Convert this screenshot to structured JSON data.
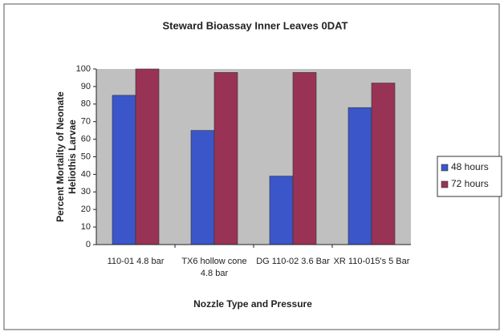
{
  "chart_data": {
    "type": "bar",
    "title": "Steward Bioassay Inner Leaves 0DAT",
    "xlabel": "Nozzle Type and Pressure",
    "ylabel": [
      "Percent Mortality of Neonate",
      "Heliothis Larvae"
    ],
    "categories": [
      "110-01 4.8 bar",
      "TX6 hollow cone 4.8 bar",
      "DG 110-02 3.6 Bar",
      "XR 110-015's 5 Bar"
    ],
    "series": [
      {
        "name": "48 hours",
        "color": "#3a56c9",
        "values": [
          85,
          65,
          39,
          78
        ]
      },
      {
        "name": "72 hours",
        "color": "#993356",
        "values": [
          100,
          98,
          98,
          92
        ]
      }
    ],
    "ylim": [
      0,
      100
    ],
    "yticks": [
      0,
      10,
      20,
      30,
      40,
      50,
      60,
      70,
      80,
      90,
      100
    ],
    "legend": "right",
    "plot_background": "#c0c0c0"
  }
}
